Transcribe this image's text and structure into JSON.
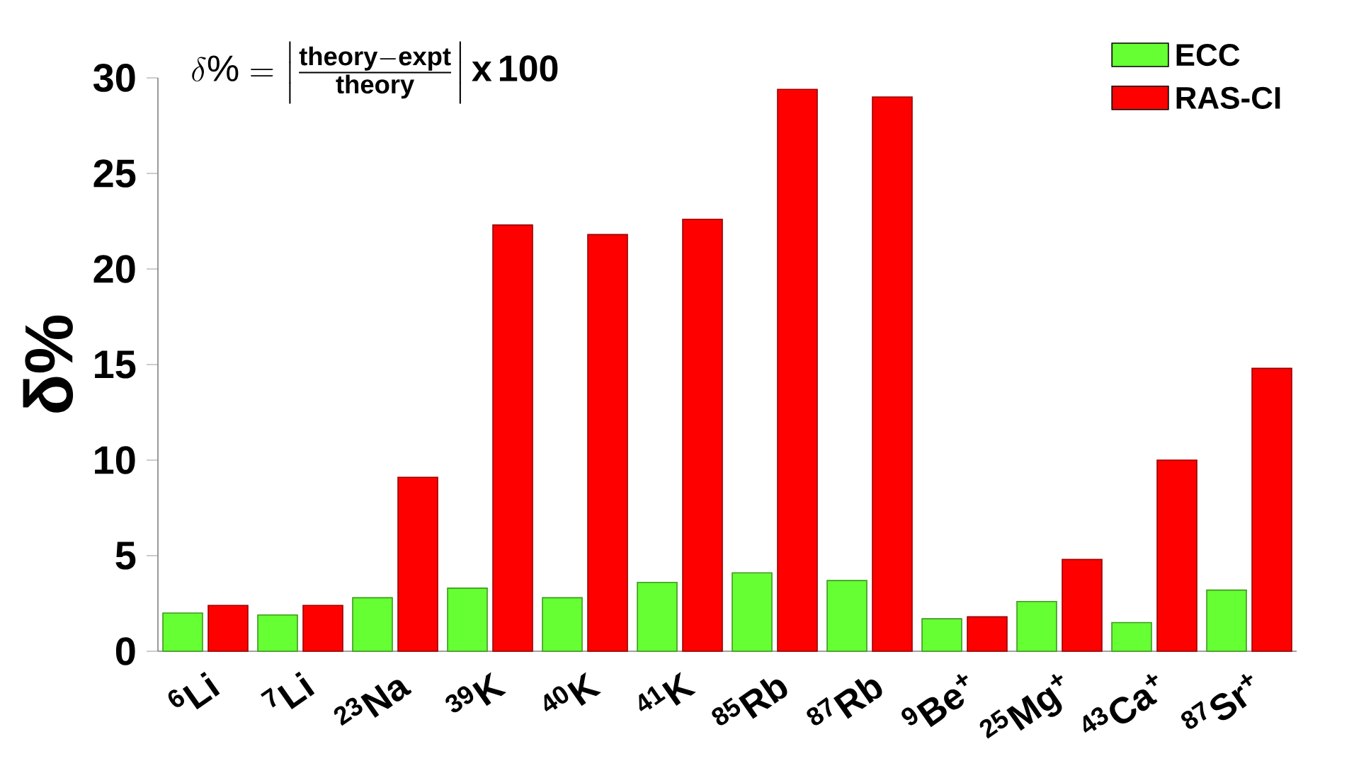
{
  "chart_data": {
    "type": "bar",
    "ylabel": "δ%",
    "annotations": [
      "\\delta\\%=\\left|\\frac{\\mathbf{theory}-\\mathbf{expt}}{\\mathbf{theory}}\\right|\\mathbf{x\\,100}"
    ],
    "categories": [
      "$^{6}$Li",
      "$^{7}$Li",
      "$^{23}$Na",
      "$^{39}$K",
      "$^{40}$K",
      "$^{41}$K",
      "$^{85}$Rb",
      "$^{87}$Rb",
      "$^{9}$Be$^{+}$",
      "$^{25}$Mg$^{+}$",
      "$^{43}$Ca$^{+}$",
      "$^{87}$Sr$^{+}$"
    ],
    "series": [
      {
        "name": "ECC",
        "color": "#66ff33",
        "values": [
          2.0,
          1.9,
          2.8,
          3.3,
          2.8,
          3.6,
          4.1,
          3.7,
          1.7,
          2.6,
          1.5,
          3.2
        ]
      },
      {
        "name": "RAS-CI",
        "color": "#ff0000",
        "values": [
          2.4,
          2.4,
          9.1,
          22.3,
          21.8,
          22.6,
          29.4,
          29.0,
          1.8,
          4.8,
          10.0,
          14.8
        ]
      }
    ],
    "ylim": [
      0,
      30
    ],
    "yticks": [
      0,
      5,
      10,
      15,
      20,
      25,
      30
    ],
    "legend": "top right"
  }
}
